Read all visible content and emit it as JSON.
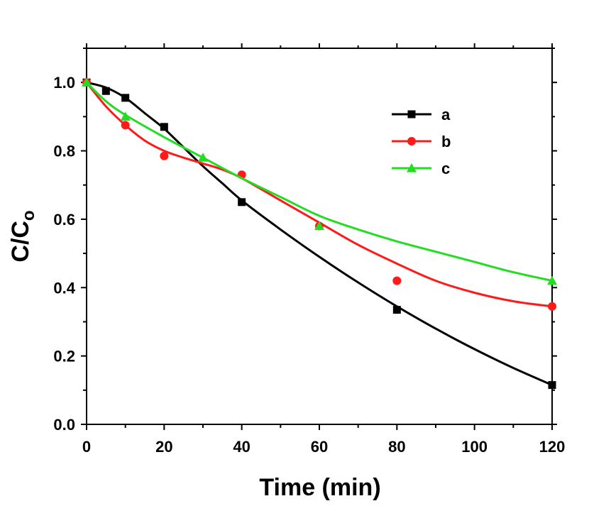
{
  "chart_data": {
    "type": "line",
    "xlabel": "Time (min)",
    "ylabel": "C/C",
    "ylabel_subscript": "o",
    "xlim": [
      0,
      120
    ],
    "ylim": [
      0,
      1.1
    ],
    "x_ticks": [
      0,
      20,
      40,
      60,
      80,
      100,
      120
    ],
    "y_ticks": [
      0.0,
      0.2,
      0.4,
      0.6,
      0.8,
      1.0
    ],
    "x_tick_labels": [
      "0",
      "20",
      "40",
      "60",
      "80",
      "100",
      "120"
    ],
    "y_tick_labels": [
      "0.0",
      "0.2",
      "0.4",
      "0.6",
      "0.8",
      "1.0"
    ],
    "legend_position": "top-right",
    "series": [
      {
        "name": "a",
        "color": "#000000",
        "marker": "square",
        "points": [
          [
            0,
            1.0
          ],
          [
            5,
            0.975
          ],
          [
            10,
            0.955
          ],
          [
            20,
            0.87
          ],
          [
            40,
            0.65
          ],
          [
            80,
            0.335
          ],
          [
            120,
            0.115
          ]
        ],
        "fit": [
          [
            0,
            1.0
          ],
          [
            5,
            0.985
          ],
          [
            10,
            0.955
          ],
          [
            15,
            0.91
          ],
          [
            20,
            0.865
          ],
          [
            25,
            0.81
          ],
          [
            30,
            0.755
          ],
          [
            35,
            0.705
          ],
          [
            40,
            0.655
          ],
          [
            50,
            0.57
          ],
          [
            60,
            0.49
          ],
          [
            70,
            0.415
          ],
          [
            80,
            0.345
          ],
          [
            90,
            0.28
          ],
          [
            100,
            0.22
          ],
          [
            110,
            0.165
          ],
          [
            120,
            0.115
          ]
        ]
      },
      {
        "name": "b",
        "color": "#ff1a1a",
        "marker": "circle",
        "points": [
          [
            0,
            1.0
          ],
          [
            10,
            0.875
          ],
          [
            20,
            0.785
          ],
          [
            40,
            0.73
          ],
          [
            60,
            0.58
          ],
          [
            80,
            0.42
          ],
          [
            120,
            0.345
          ]
        ],
        "fit": [
          [
            0,
            1.0
          ],
          [
            5,
            0.93
          ],
          [
            10,
            0.875
          ],
          [
            15,
            0.83
          ],
          [
            20,
            0.8
          ],
          [
            25,
            0.78
          ],
          [
            30,
            0.763
          ],
          [
            35,
            0.745
          ],
          [
            40,
            0.72
          ],
          [
            50,
            0.655
          ],
          [
            60,
            0.59
          ],
          [
            70,
            0.525
          ],
          [
            80,
            0.47
          ],
          [
            90,
            0.42
          ],
          [
            100,
            0.385
          ],
          [
            110,
            0.36
          ],
          [
            120,
            0.345
          ]
        ]
      },
      {
        "name": "c",
        "color": "#22dd22",
        "marker": "triangle",
        "points": [
          [
            0,
            1.0
          ],
          [
            10,
            0.9
          ],
          [
            30,
            0.78
          ],
          [
            60,
            0.58
          ],
          [
            120,
            0.42
          ]
        ],
        "fit": [
          [
            0,
            1.0
          ],
          [
            5,
            0.945
          ],
          [
            10,
            0.905
          ],
          [
            20,
            0.84
          ],
          [
            30,
            0.78
          ],
          [
            40,
            0.72
          ],
          [
            50,
            0.665
          ],
          [
            60,
            0.61
          ],
          [
            70,
            0.57
          ],
          [
            80,
            0.535
          ],
          [
            90,
            0.505
          ],
          [
            100,
            0.475
          ],
          [
            110,
            0.445
          ],
          [
            120,
            0.42
          ]
        ]
      }
    ]
  }
}
